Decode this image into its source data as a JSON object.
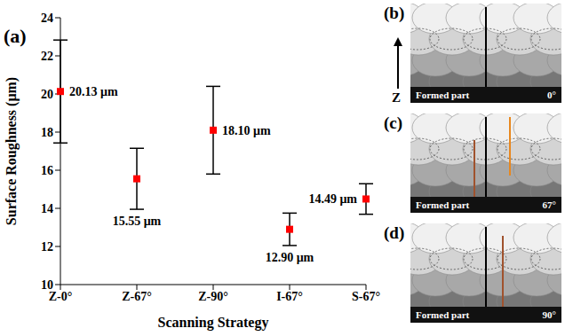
{
  "chart_data": {
    "type": "scatter",
    "panel_label": "(a)",
    "x_label": "Scanning Strategy",
    "y_label": "Surface Roughness (μm)",
    "categories": [
      "Z-0°",
      "Z-67°",
      "Z-90°",
      "I-67°",
      "S-67°"
    ],
    "values": [
      20.13,
      15.55,
      18.1,
      12.9,
      14.49
    ],
    "value_labels": [
      "20.13 μm",
      "15.55 μm",
      "18.10 μm",
      "12.90 μm",
      "14.49 μm"
    ],
    "errors": [
      2.7,
      1.6,
      2.3,
      0.85,
      0.8
    ],
    "data_labels": true,
    "color": "#ff0000",
    "marker": "square",
    "ylim": [
      10,
      24
    ],
    "yticks": [
      10,
      12,
      14,
      16,
      18,
      20,
      22,
      24
    ]
  },
  "direction_label": "Z",
  "diagrams": [
    {
      "letter": "(b)",
      "base_label": "Formed part",
      "angle": "0°"
    },
    {
      "letter": "(c)",
      "base_label": "Formed part",
      "angle": "67°"
    },
    {
      "letter": "(d)",
      "base_label": "Formed part",
      "angle": "90°"
    }
  ]
}
